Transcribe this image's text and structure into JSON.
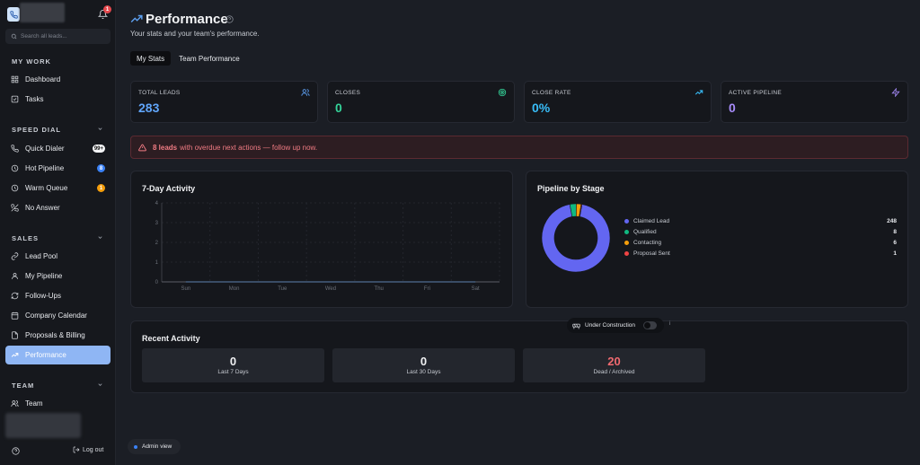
{
  "sidebar": {
    "notification_count": "1",
    "search_placeholder": "Search all leads...",
    "sections": {
      "my_work": "MY WORK",
      "speed_dial": "SPEED DIAL",
      "sales": "SALES",
      "team": "TEAM"
    },
    "my_work_items": [
      {
        "label": "Dashboard",
        "icon": "grid-icon"
      },
      {
        "label": "Tasks",
        "icon": "checkbox-icon"
      }
    ],
    "speed_dial_items": [
      {
        "label": "Quick Dialer",
        "badge": "99+",
        "badge_color": "#f3f4f6"
      },
      {
        "label": "Hot Pipeline",
        "badge": "8",
        "badge_color": "#3b82f6"
      },
      {
        "label": "Warm Queue",
        "badge": "1",
        "badge_color": "#f59e0b"
      },
      {
        "label": "No Answer",
        "badge": ""
      }
    ],
    "sales_items": [
      {
        "label": "Lead Pool"
      },
      {
        "label": "My Pipeline"
      },
      {
        "label": "Follow-Ups"
      },
      {
        "label": "Company Calendar"
      },
      {
        "label": "Proposals & Billing"
      },
      {
        "label": "Performance",
        "active": true
      }
    ],
    "team_items": [
      {
        "label": "Team"
      }
    ],
    "logout_label": "Log out"
  },
  "header": {
    "title": "Performance",
    "subtitle": "Your stats and your team's performance."
  },
  "tabs": [
    {
      "label": "My Stats",
      "active": true
    },
    {
      "label": "Team Performance",
      "active": false
    }
  ],
  "stats": [
    {
      "label": "TOTAL LEADS",
      "value": "283",
      "color": "#60a5fa",
      "icon": "users-icon"
    },
    {
      "label": "CLOSES",
      "value": "0",
      "color": "#34d399",
      "icon": "target-icon"
    },
    {
      "label": "CLOSE RATE",
      "value": "0%",
      "color": "#38bdf8",
      "icon": "trend-icon"
    },
    {
      "label": "ACTIVE PIPELINE",
      "value": "0",
      "color": "#a78bfa",
      "icon": "bolt-icon"
    }
  ],
  "alert": {
    "count_text": "8 leads",
    "message": "with overdue next actions — follow up now."
  },
  "activity": {
    "title": "7-Day Activity",
    "chart_data": {
      "type": "line",
      "categories": [
        "Sun",
        "Mon",
        "Tue",
        "Wed",
        "Thu",
        "Fri",
        "Sat"
      ],
      "y_ticks": [
        "0",
        "1",
        "2",
        "3",
        "4"
      ],
      "ylim": [
        0,
        4
      ],
      "series": [
        {
          "values": [
            0,
            0,
            0,
            0,
            0,
            0,
            0
          ]
        }
      ],
      "grid": true
    }
  },
  "pipeline": {
    "title": "Pipeline by Stage",
    "chart_data": {
      "type": "pie",
      "categories": [
        "Claimed Lead",
        "Qualified",
        "Contacting",
        "Proposal Sent"
      ],
      "values": [
        248,
        8,
        6,
        1
      ],
      "colors": [
        "#6366f1",
        "#10b981",
        "#f59e0b",
        "#ef4444"
      ]
    }
  },
  "recent": {
    "title": "Recent Activity",
    "under_construction": "Under Construction",
    "info_mark": "i",
    "boxes": [
      {
        "value": "0",
        "caption": "Last 7 Days",
        "color": "#f0f1f3"
      },
      {
        "value": "0",
        "caption": "Last 30 Days",
        "color": "#f0f1f3"
      },
      {
        "value": "20",
        "caption": "Dead / Archived",
        "color": "#f06a70"
      }
    ]
  },
  "admin_label": "Admin view"
}
